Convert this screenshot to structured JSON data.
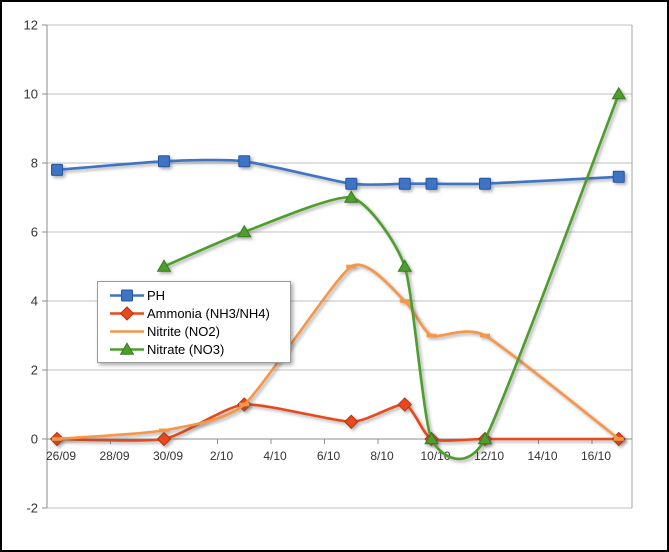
{
  "chart_data": {
    "type": "line",
    "smooth": true,
    "title": "",
    "xlabel": "",
    "ylabel": "",
    "x_axis": {
      "kind": "date",
      "tick_labels": [
        "26/09",
        "28/09",
        "30/09",
        "2/10",
        "4/10",
        "6/10",
        "8/10",
        "10/10",
        "12/10",
        "14/10",
        "16/10"
      ],
      "tick_days": [
        0,
        2,
        4,
        6,
        8,
        10,
        12,
        14,
        16,
        18,
        20
      ]
    },
    "y_axis": {
      "min": -2,
      "max": 12,
      "step": 2,
      "tick_values": [
        -2,
        0,
        2,
        4,
        6,
        8,
        10,
        12
      ],
      "tick_labels": [
        "-2",
        "0",
        "2",
        "4",
        "6",
        "8",
        "10",
        "12"
      ]
    },
    "grid": {
      "horizontal": true,
      "vertical": false
    },
    "legend_position": "middle-left",
    "point_dates": [
      "26/09",
      "30/09",
      "3/10",
      "7/10",
      "9/10",
      "10/10",
      "12/10",
      "17/10"
    ],
    "point_days": [
      0,
      4,
      7,
      11,
      13,
      14,
      16,
      21
    ],
    "series": [
      {
        "name": "PH",
        "color": "#3E74C4",
        "marker_stroke": "#2A549B",
        "marker": "square",
        "values": [
          7.8,
          8.05,
          8.05,
          7.4,
          7.4,
          7.4,
          7.4,
          7.6
        ]
      },
      {
        "name": "Ammonia (NH3/NH4)",
        "color": "#E8481C",
        "marker_stroke": "#B53411",
        "marker": "diamond",
        "values": [
          0,
          0,
          1.0,
          0.5,
          1.0,
          0,
          0,
          0
        ]
      },
      {
        "name": "Nitrite (NO2)",
        "color": "#F79646",
        "marker_stroke": "#C46F2A",
        "marker": "dash",
        "values": [
          0,
          0.25,
          1.0,
          5.0,
          4.0,
          3.0,
          3.0,
          0
        ]
      },
      {
        "name": "Nitrate (NO3)",
        "color": "#4D9E2D",
        "marker_stroke": "#3A7A20",
        "marker": "triangle",
        "values": [
          null,
          5.0,
          6.0,
          7.0,
          5.0,
          0,
          0,
          10.0
        ]
      }
    ],
    "colors": {
      "gridline": "#C2C2C2",
      "axis_line": "#8E8E8E",
      "plot_right_border": "#A6A6A6",
      "tick_label": "#333333",
      "background": "#FFFFFF",
      "frame_border": "#000000"
    }
  }
}
